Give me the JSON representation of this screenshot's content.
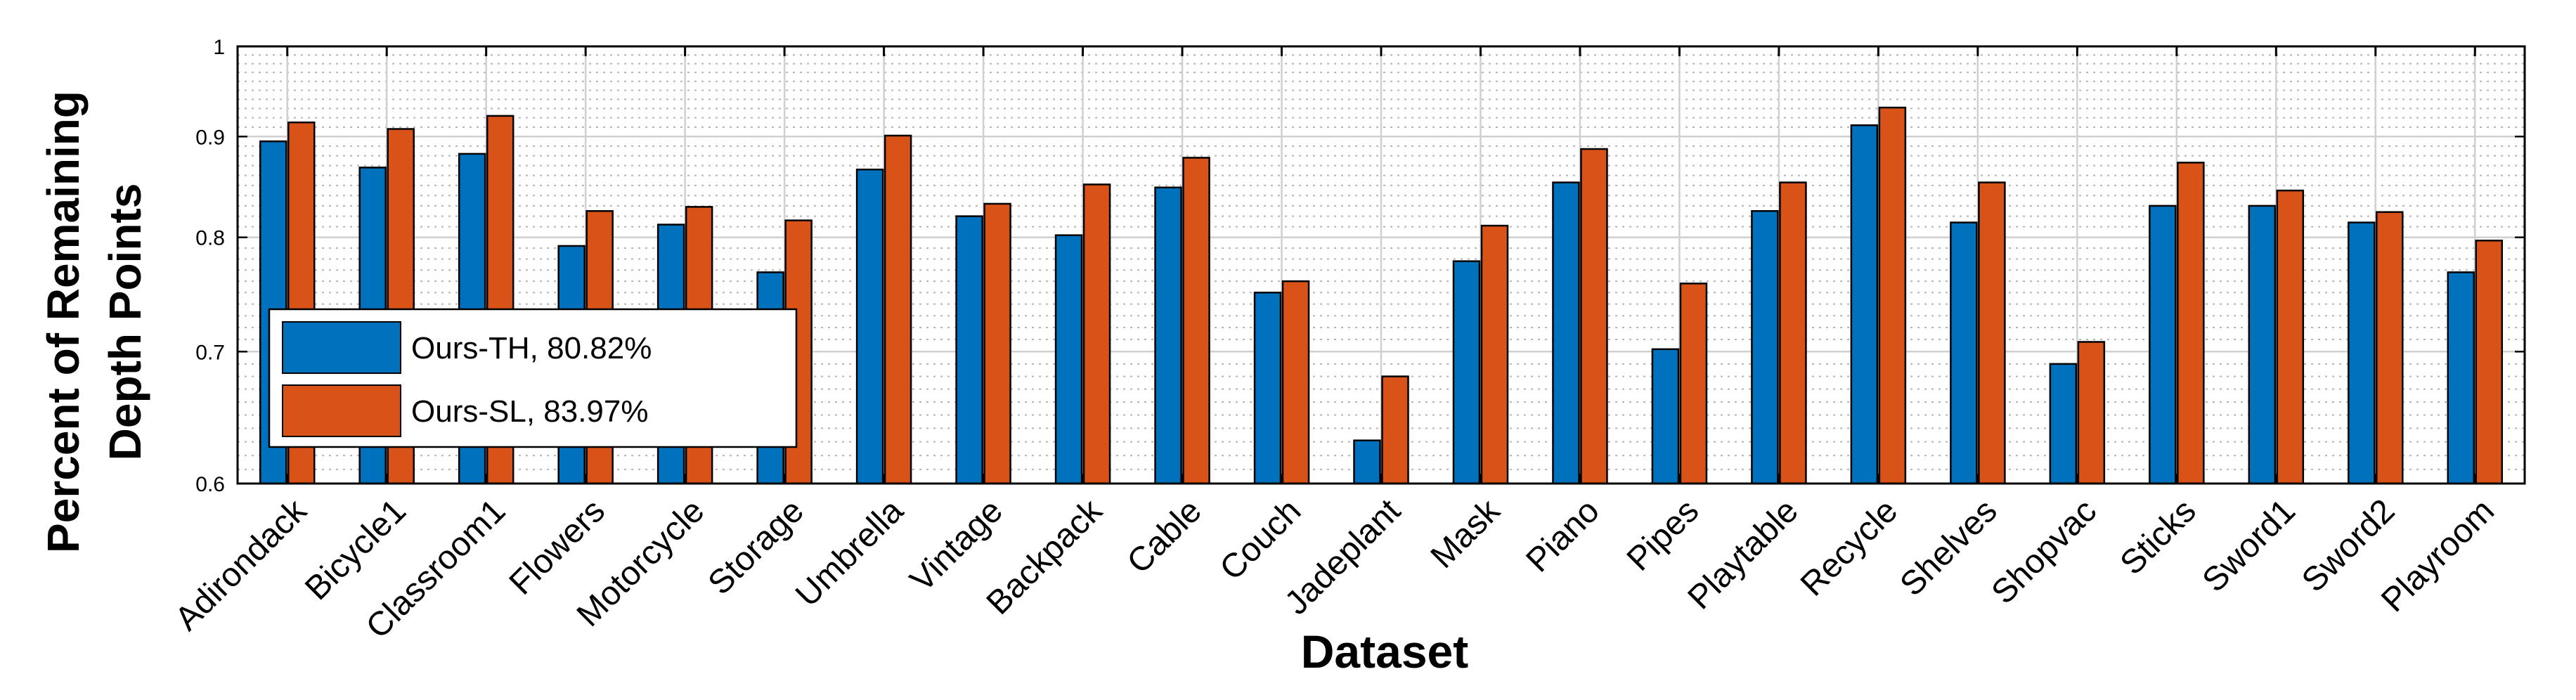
{
  "chart_data": {
    "type": "bar",
    "xlabel": "Dataset",
    "ylabel_lines": [
      "Percent of Remaining",
      "Depth Points"
    ],
    "ylim": [
      0.6,
      1
    ],
    "yscale": "log",
    "yticks": [
      0.6,
      0.7,
      0.8,
      0.9,
      1
    ],
    "ytick_labels": [
      "0.6",
      "0.7",
      "0.8",
      "0.9",
      "1"
    ],
    "grid": true,
    "legend_position": "left-middle",
    "categories": [
      "Adirondack",
      "Bicycle1",
      "Classroom1",
      "Flowers",
      "Motorcycle",
      "Storage",
      "Umbrella",
      "Vintage",
      "Backpack",
      "Cable",
      "Couch",
      "Jadeplant",
      "Mask",
      "Piano",
      "Pipes",
      "Playtable",
      "Recycle",
      "Shelves",
      "Shopvac",
      "Sticks",
      "Sword1",
      "Sword2",
      "Playroom"
    ],
    "series": [
      {
        "name": "Ours-TH",
        "legend_label": "Ours-TH, 80.82%",
        "color": "#0072BD",
        "values": [
          0.895,
          0.868,
          0.882,
          0.792,
          0.812,
          0.768,
          0.866,
          0.82,
          0.802,
          0.848,
          0.75,
          0.631,
          0.778,
          0.853,
          0.702,
          0.825,
          0.912,
          0.814,
          0.69,
          0.83,
          0.83,
          0.814,
          0.768
        ]
      },
      {
        "name": "Ours-SL",
        "legend_label": "Ours-SL, 83.97%",
        "color": "#D95319",
        "values": [
          0.915,
          0.908,
          0.922,
          0.825,
          0.829,
          0.816,
          0.901,
          0.832,
          0.851,
          0.878,
          0.76,
          0.68,
          0.811,
          0.887,
          0.758,
          0.853,
          0.931,
          0.853,
          0.708,
          0.873,
          0.845,
          0.824,
          0.797
        ]
      }
    ]
  }
}
